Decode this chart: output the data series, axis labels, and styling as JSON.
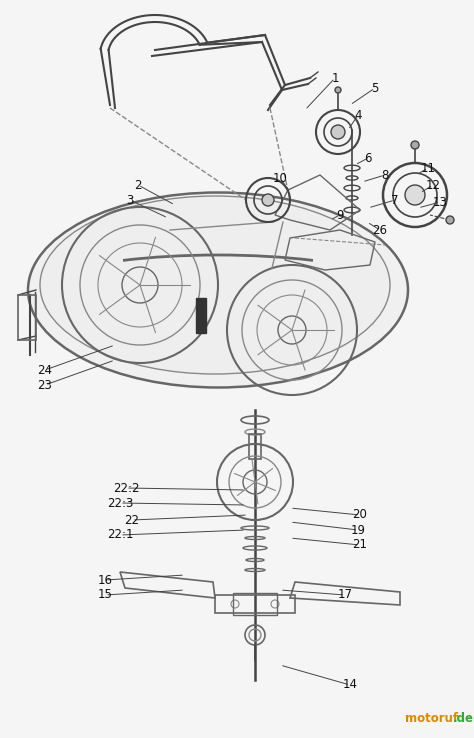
{
  "background_color": "#f5f5f5",
  "watermark": "motoruf.de",
  "fig_width": 4.74,
  "fig_height": 7.38,
  "dpi": 100,
  "lc": "#444444",
  "lc2": "#666666",
  "lc3": "#888888",
  "label_fs": 8.5,
  "label_color": "#111111",
  "leaders": [
    [
      "1",
      335,
      78,
      305,
      110
    ],
    [
      "2",
      138,
      185,
      175,
      205
    ],
    [
      "3",
      130,
      200,
      168,
      218
    ],
    [
      "4",
      358,
      115,
      348,
      130
    ],
    [
      "5",
      375,
      88,
      350,
      105
    ],
    [
      "6",
      368,
      158,
      355,
      165
    ],
    [
      "7",
      395,
      200,
      368,
      208
    ],
    [
      "8",
      385,
      175,
      362,
      182
    ],
    [
      "9",
      340,
      215,
      330,
      220
    ],
    [
      "10",
      280,
      178,
      290,
      192
    ],
    [
      "11",
      428,
      168,
      416,
      175
    ],
    [
      "12",
      433,
      185,
      420,
      193
    ],
    [
      "13",
      440,
      202,
      418,
      208
    ],
    [
      "14",
      350,
      685,
      280,
      665
    ],
    [
      "15",
      105,
      595,
      185,
      590
    ],
    [
      "16",
      105,
      580,
      185,
      575
    ],
    [
      "17",
      345,
      595,
      280,
      590
    ],
    [
      "19",
      358,
      530,
      290,
      522
    ],
    [
      "20",
      360,
      515,
      290,
      508
    ],
    [
      "21",
      360,
      545,
      290,
      538
    ],
    [
      "22",
      132,
      520,
      248,
      515
    ],
    [
      "22:1",
      120,
      535,
      246,
      530
    ],
    [
      "22:2",
      126,
      488,
      246,
      490
    ],
    [
      "22:3",
      120,
      503,
      246,
      505
    ],
    [
      "23",
      45,
      385,
      115,
      360
    ],
    [
      "24",
      45,
      370,
      115,
      345
    ],
    [
      "26",
      380,
      230,
      367,
      222
    ]
  ]
}
